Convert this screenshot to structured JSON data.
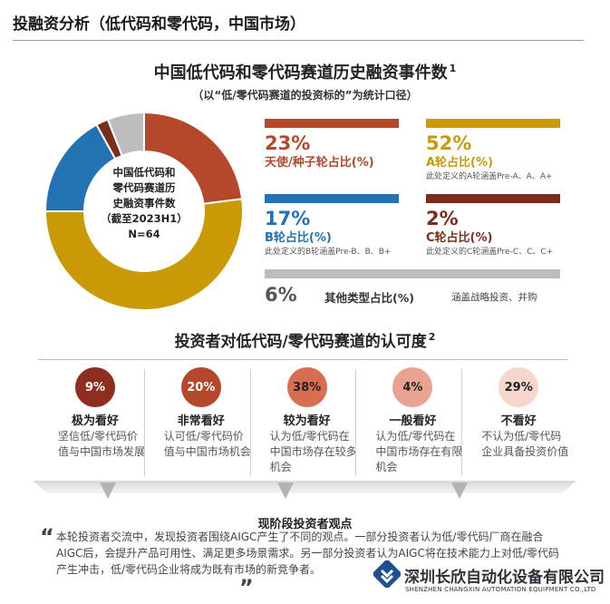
{
  "page": {
    "title": "投融资分析（低代码和零代码，中国市场）"
  },
  "section1": {
    "title": "中国低代码和零代码赛道历史融资事件数",
    "title_sup": "1",
    "subtitle": "（以“低/零代码赛道的投资标的”为统计口径）",
    "center_lines": [
      "中国低代码和",
      "零代码赛道历",
      "史融资事件数",
      "（截至2023H1）",
      "N=64"
    ]
  },
  "chart_data": {
    "type": "pie",
    "title": "中国低代码和零代码赛道历史融资事件数",
    "labels": [
      "天使/种子轮",
      "A轮",
      "B轮",
      "C轮",
      "其他类型"
    ],
    "values": [
      23,
      52,
      17,
      2,
      6
    ],
    "colors": [
      "#b5472a",
      "#c99a06",
      "#2272b4",
      "#7b2d1c",
      "#bdbdbd"
    ],
    "unit": "%",
    "donut": true,
    "total_label": "N=64"
  },
  "stats": {
    "angel": {
      "pct": "23%",
      "label": "天使/种子轮占比(%)",
      "color": "#b5472a"
    },
    "a_round": {
      "pct": "52%",
      "label": "A轮占比(%)",
      "note": "此处定义的A轮涵盖Pre-A、A、A+",
      "color": "#c99a06"
    },
    "b_round": {
      "pct": "17%",
      "label": "B轮占比(%)",
      "note": "此处定义的B轮涵盖Pre-B、B、B+",
      "color": "#2272b4"
    },
    "c_round": {
      "pct": "2%",
      "label": "C轮占比(%)",
      "note": "此处定义的C轮涵盖Pre-C、C、C+",
      "color": "#7b2d1c"
    },
    "other": {
      "pct": "6%",
      "label": "其他类型占比(%)",
      "note": "涵盖战略投资、并购",
      "color": "#bdbdbd"
    }
  },
  "section2": {
    "title": "投资者对低代码/零代码赛道的认可度",
    "title_sup": "2",
    "items": [
      {
        "pct": "9%",
        "label": "极为看好",
        "desc": "坚信低/零代码价值与中国市场发展",
        "bg": "#8e2e1e",
        "fg": "#ffffff"
      },
      {
        "pct": "20%",
        "label": "非常看好",
        "desc": "认可低/零代码价值与中国市场机会",
        "bg": "#b5472a",
        "fg": "#ffffff"
      },
      {
        "pct": "38%",
        "label": "较为看好",
        "desc": "认为低/零代码在中国市场存在较多机会",
        "bg": "#d96d52",
        "fg": "#222222"
      },
      {
        "pct": "4%",
        "label": "一般看好",
        "desc": "认为低/零代码在中国市场存在有限机会",
        "bg": "#eba391",
        "fg": "#222222"
      },
      {
        "pct": "29%",
        "label": "不看好",
        "desc": "不认为低/零代码企业具备投资价值",
        "bg": "#f6d6cd",
        "fg": "#222222"
      }
    ]
  },
  "section3": {
    "title": "现阶段投资者观点",
    "quote": "本轮投资者交流中，发现投资者围绕AIGC产生了不同的观点。一部分投资者认为低/零代码厂商在融合AIGC后，会提升产品可用性、满足更多场景需求。另一部分投资者认为AIGC将在技术能力上对低/零代码产生冲击，低/零代码企业将成为既有市场的新竞争者。",
    "open_quote": "“",
    "close_quote": "”"
  },
  "branding": {
    "company_cn": "深圳长欣自动化设备有限公司",
    "company_en": "SHENZHEN CHANGXIN AUTOMATION EQUIPMENT CO.,LTD",
    "logo_color": "#1e4f8f"
  }
}
